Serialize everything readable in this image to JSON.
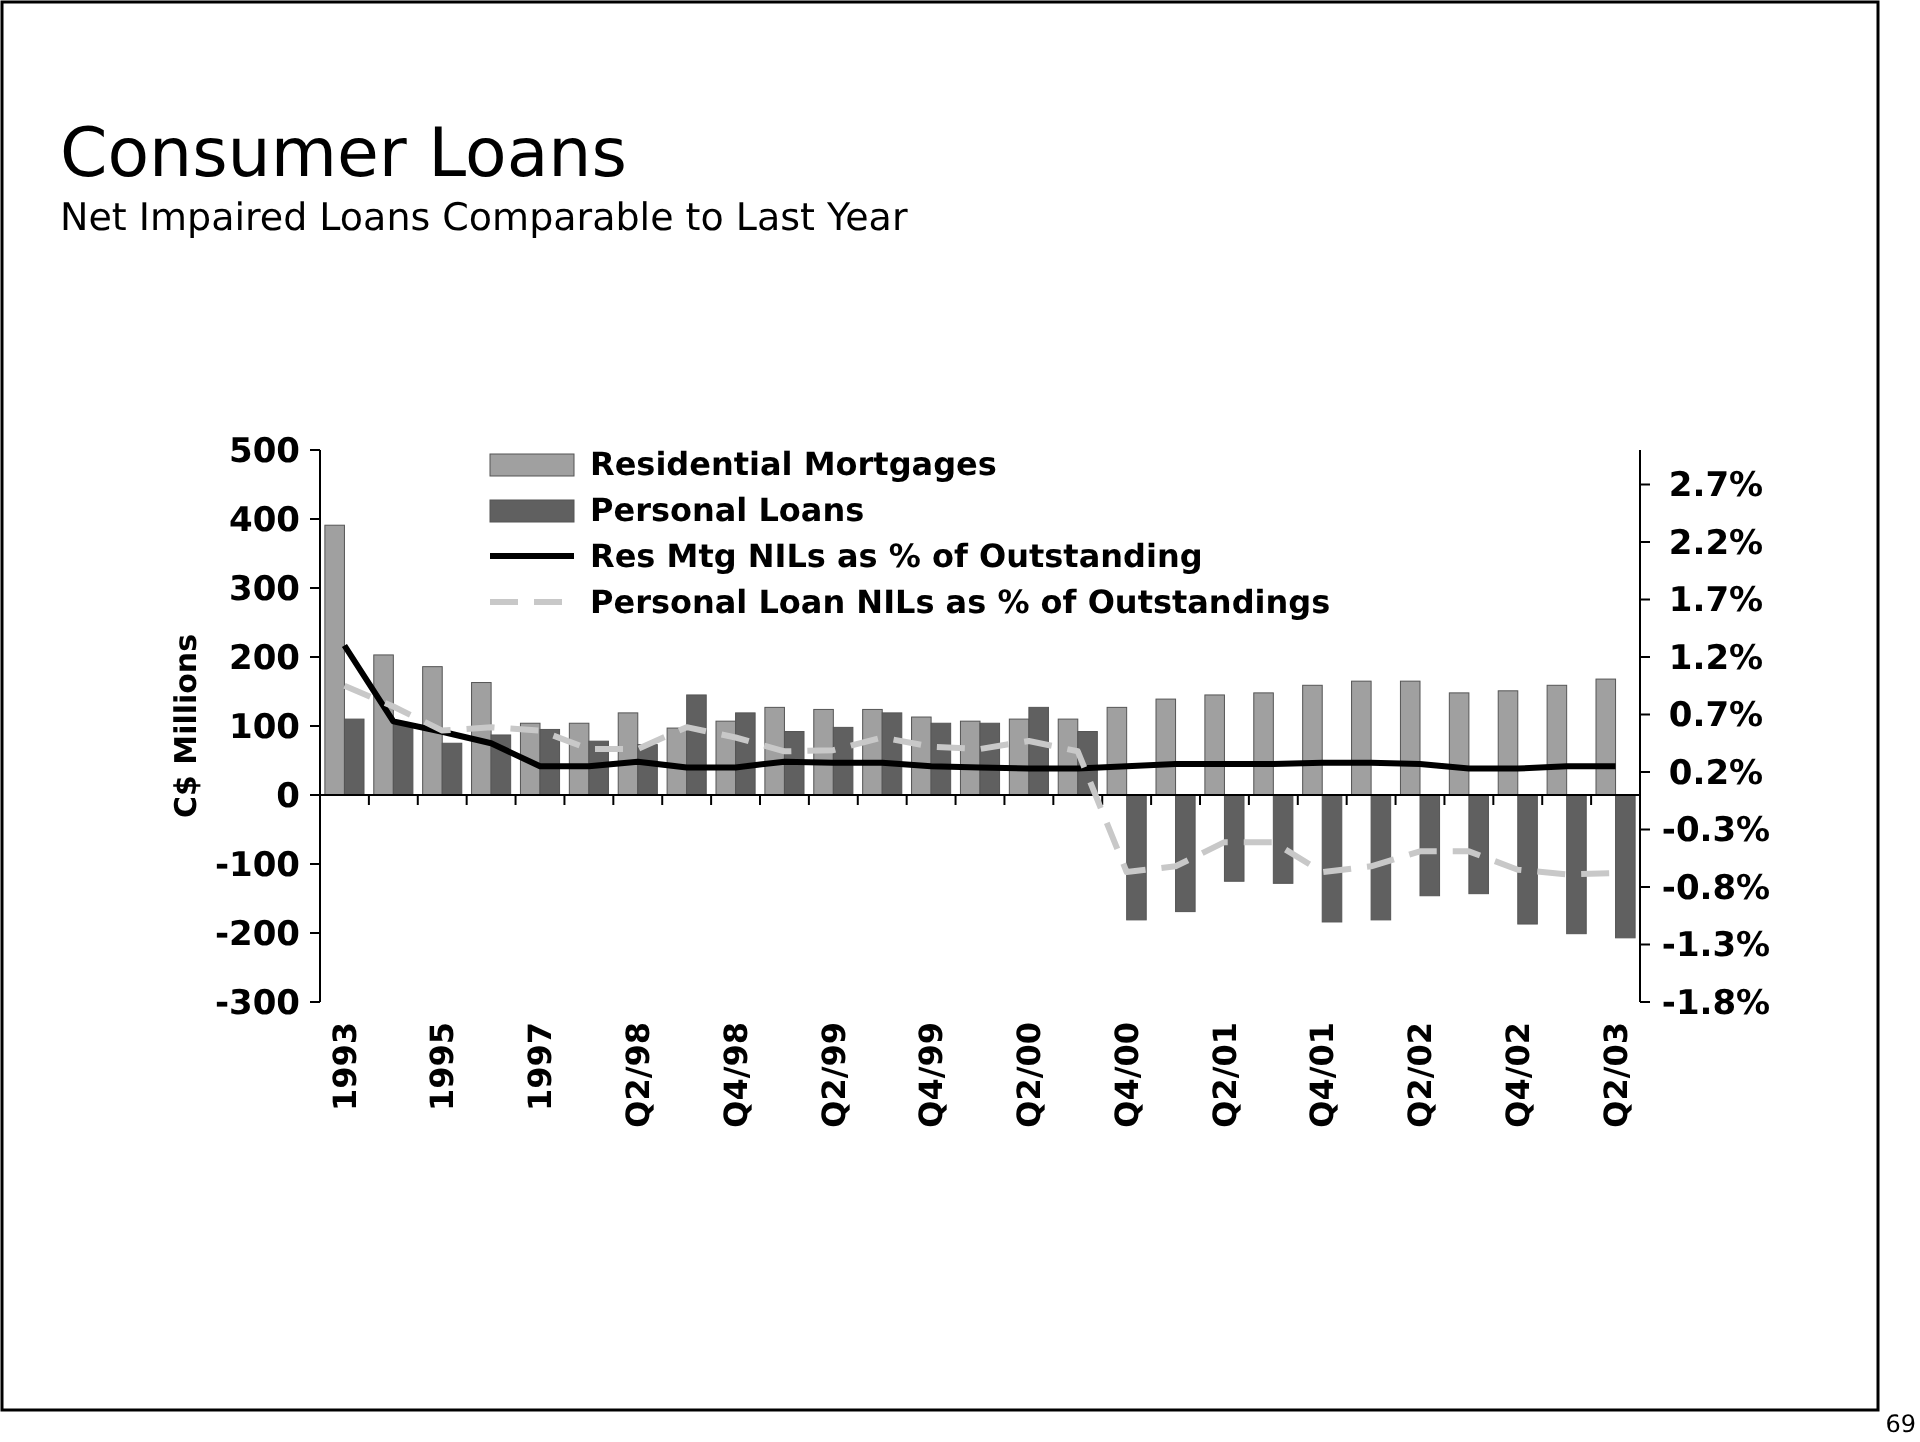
{
  "chart_data": {
    "type": "bar",
    "title": "Consumer Loans",
    "subtitle": "Net Impaired Loans Comparable to Last Year",
    "ylabel": "C$ Millions",
    "categories": [
      "1993",
      null,
      "1995",
      null,
      "1997",
      null,
      "Q2/98",
      null,
      "Q4/98",
      null,
      "Q2/99",
      null,
      "Q4/99",
      null,
      "Q2/00",
      null,
      "Q4/00",
      null,
      "Q2/01",
      null,
      "Q4/01",
      null,
      "Q2/02",
      null,
      "Q4/02",
      null,
      "Q2/03"
    ],
    "series": [
      {
        "name": "Residential Mortgages",
        "color": "#a0a0a0",
        "values": [
          391,
          203,
          186,
          163,
          104,
          104,
          119,
          97,
          107,
          127,
          124,
          124,
          113,
          107,
          110,
          110,
          127,
          139,
          145,
          148,
          159,
          165,
          165,
          148,
          151,
          159,
          168
        ]
      },
      {
        "name": "Personal Loans",
        "color": "#606060",
        "values": [
          110,
          102,
          75,
          87,
          95,
          78,
          73,
          145,
          119,
          92,
          98,
          119,
          104,
          104,
          127,
          92,
          -181,
          -169,
          -125,
          -128,
          -184,
          -181,
          -146,
          -143,
          -187,
          -201,
          -207
        ]
      },
      {
        "name": "Res Mtg NILs as % of Outstanding",
        "type": "line",
        "axis": "y2",
        "color": "#000000",
        "line_style": "solid",
        "values": [
          1.3,
          0.64,
          0.55,
          0.45,
          0.25,
          0.25,
          0.29,
          0.24,
          0.24,
          0.29,
          0.28,
          0.28,
          0.25,
          0.24,
          0.23,
          0.23,
          0.25,
          0.27,
          0.27,
          0.27,
          0.28,
          0.28,
          0.27,
          0.23,
          0.23,
          0.25,
          0.25
        ]
      },
      {
        "name": "Personal Loan NILs as % of Outstandings",
        "type": "line",
        "axis": "y2",
        "color": "#c8c8c8",
        "line_style": "dashed",
        "values": [
          0.95,
          0.77,
          0.56,
          0.59,
          0.56,
          0.4,
          0.4,
          0.59,
          0.5,
          0.38,
          0.39,
          0.5,
          0.42,
          0.4,
          0.47,
          0.38,
          -0.67,
          -0.62,
          -0.41,
          -0.41,
          -0.67,
          -0.62,
          -0.49,
          -0.49,
          -0.65,
          -0.69,
          -0.68
        ]
      }
    ],
    "ylim": [
      -300,
      500
    ],
    "yticks": [
      -300,
      -200,
      -100,
      0,
      100,
      200,
      300,
      400,
      500
    ],
    "y2lim": [
      -1.8,
      3.0
    ],
    "y2ticks": [
      {
        "value": -1.8,
        "label": "-1.8%"
      },
      {
        "value": -1.3,
        "label": "-1.3%"
      },
      {
        "value": -0.8,
        "label": "-0.8%"
      },
      {
        "value": -0.3,
        "label": "-0.3%"
      },
      {
        "value": 0.2,
        "label": "0.2%"
      },
      {
        "value": 0.7,
        "label": "0.7%"
      },
      {
        "value": 1.2,
        "label": "1.2%"
      },
      {
        "value": 1.7,
        "label": "1.7%"
      },
      {
        "value": 2.2,
        "label": "2.2%"
      },
      {
        "value": 2.7,
        "label": "2.7%"
      }
    ],
    "legend": "top",
    "annotations": [
      "69"
    ]
  }
}
